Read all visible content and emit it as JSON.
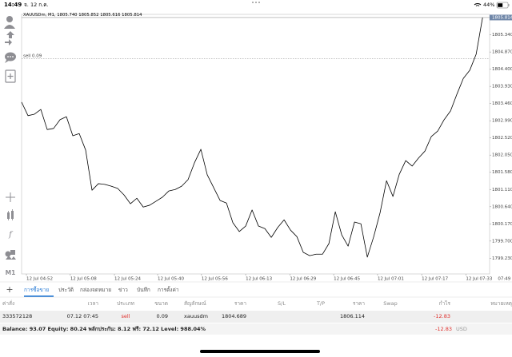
{
  "status_bar": {
    "time": "14:49",
    "date": "จ. 12 ก.ค.",
    "battery": "44%"
  },
  "toolbar": {
    "timeframe": "M1"
  },
  "chart_data": {
    "type": "line",
    "title": "XAUUSDm, M1, 1805.740 1805.852 1805.616 1805.814",
    "color": "#000000",
    "values": [
      1803.5,
      1803.13,
      1803.17,
      1803.3,
      1802.75,
      1802.78,
      1803.02,
      1803.1,
      1802.58,
      1802.64,
      1802.19,
      1801.09,
      1801.27,
      1801.25,
      1801.2,
      1801.14,
      1800.96,
      1800.72,
      1800.87,
      1800.63,
      1800.68,
      1800.79,
      1800.9,
      1801.07,
      1801.11,
      1801.2,
      1801.38,
      1801.84,
      1802.21,
      1801.51,
      1801.16,
      1800.81,
      1800.74,
      1800.2,
      1799.96,
      1800.11,
      1800.55,
      1800.11,
      1800.04,
      1799.8,
      1800.07,
      1800.28,
      1800.0,
      1799.82,
      1799.39,
      1799.3,
      1799.34,
      1799.34,
      1799.63,
      1800.5,
      1799.87,
      1799.56,
      1800.22,
      1800.17,
      1799.26,
      1799.82,
      1800.48,
      1801.35,
      1800.92,
      1801.53,
      1801.9,
      1801.75,
      1801.97,
      1802.16,
      1802.56,
      1802.71,
      1803.02,
      1803.26,
      1803.72,
      1804.15,
      1804.37,
      1804.81,
      1805.81
    ],
    "xlim": [
      0,
      73.1
    ],
    "xticks": [
      {
        "value": 0.75,
        "label": "12 Jul 04:52"
      },
      {
        "value": 7.6,
        "label": "12 Jul 05:08"
      },
      {
        "value": 14.5,
        "label": "12 Jul 05:24"
      },
      {
        "value": 21.25,
        "label": "12 Jul 05:40"
      },
      {
        "value": 28.1,
        "label": "12 Jul 05:56"
      },
      {
        "value": 35,
        "label": "12 Jul 06:13"
      },
      {
        "value": 41.9,
        "label": "12 Jul 06:29"
      },
      {
        "value": 48.75,
        "label": "12 Jul 06:45"
      },
      {
        "value": 55.6,
        "label": "12 Jul 07:01"
      },
      {
        "value": 62.5,
        "label": "12 Jul 07:17"
      },
      {
        "value": 69.4,
        "label": "12 Jul 07:33"
      },
      {
        "value": 74.4,
        "label": "07:49"
      }
    ],
    "ylim": [
      1798.8,
      1805.9
    ],
    "yticks": [
      {
        "value": 1805.34,
        "label": "1805.340"
      },
      {
        "value": 1804.87,
        "label": "1804.870"
      },
      {
        "value": 1804.4,
        "label": "1804.400"
      },
      {
        "value": 1803.93,
        "label": "1803.930"
      },
      {
        "value": 1803.46,
        "label": "1803.460"
      },
      {
        "value": 1802.99,
        "label": "1802.990"
      },
      {
        "value": 1802.52,
        "label": "1802.520"
      },
      {
        "value": 1802.05,
        "label": "1802.050"
      },
      {
        "value": 1801.58,
        "label": "1801.580"
      },
      {
        "value": 1801.11,
        "label": "1801.110"
      },
      {
        "value": 1800.64,
        "label": "1800.640"
      },
      {
        "value": 1800.17,
        "label": "1800.170"
      },
      {
        "value": 1799.7,
        "label": "1799.700"
      },
      {
        "value": 1799.23,
        "label": "1799.230"
      }
    ],
    "current_price": 1805.814,
    "order_label": "sell 0.09"
  },
  "tabs": [
    "การซื้อขาย",
    "ประวัติ",
    "กล่องจดหมาย",
    "ข่าว",
    "บันทึก",
    "การตั้งค่า"
  ],
  "table": {
    "columns": [
      "ค่าสั่ง",
      "เวลา",
      "ประเภท",
      "ขนาด",
      "สัญลักษณ์",
      "ราคา",
      "S/L",
      "T/P",
      "ราคา",
      "Swap",
      "กำไร",
      "หมายเหตุ"
    ],
    "rows": [
      {
        "order": "333572128",
        "time": "07.12 07:45",
        "type": "sell",
        "volume": 0.09,
        "symbol": "xauusdm",
        "price": 1804.689,
        "current_price": 1806.114,
        "profit": -12.83
      }
    ]
  },
  "summary": {
    "text": "Balance: 93.07 Equity: 80.24 พลักประกัน: 8.12 ฟรี: 72.12 Level: 988.04%",
    "profit": -12.83,
    "currency": "USD"
  }
}
